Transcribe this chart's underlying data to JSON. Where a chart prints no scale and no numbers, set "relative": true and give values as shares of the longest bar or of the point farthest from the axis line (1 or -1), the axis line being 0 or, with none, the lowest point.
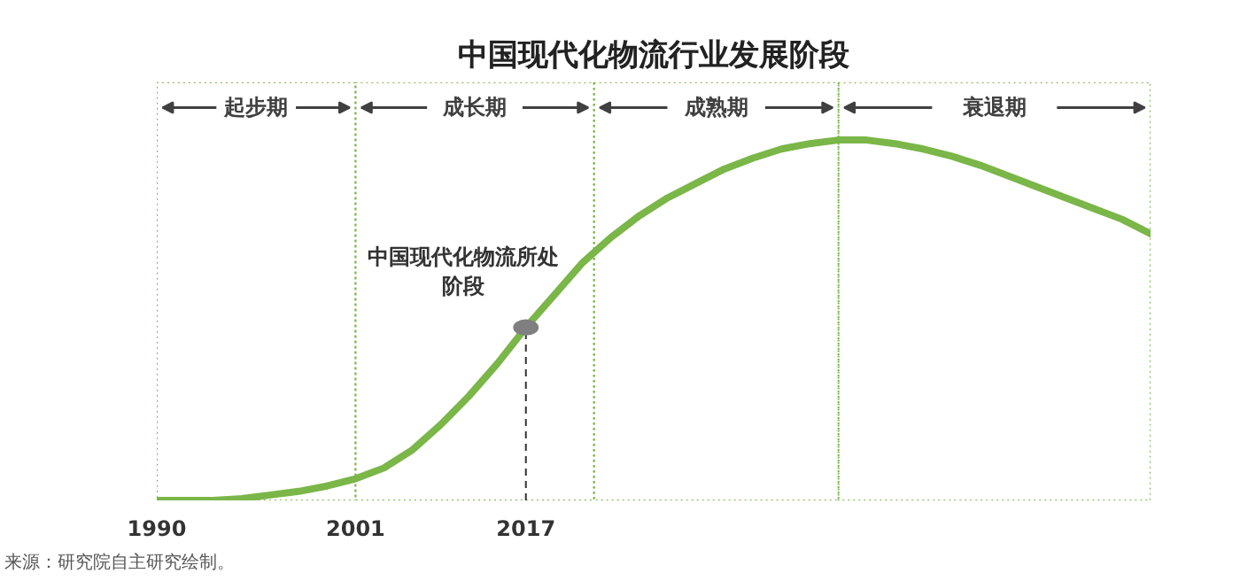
{
  "chart_data": {
    "type": "line",
    "title": "中国现代化物流行业发展阶段",
    "relative": true,
    "categories": [
      "1990",
      null,
      null,
      null,
      null,
      null,
      null,
      "2001",
      null,
      null,
      null,
      null,
      null,
      "2017",
      null,
      null,
      null,
      null,
      null,
      null,
      null,
      null,
      null,
      null,
      null,
      null,
      null,
      null,
      null,
      null,
      null,
      null,
      null,
      null,
      null,
      null
    ],
    "series": [
      {
        "color": "#7ab648",
        "values": [
          0,
          0,
          0,
          0.005,
          0.015,
          0.025,
          0.04,
          0.06,
          0.09,
          0.14,
          0.21,
          0.29,
          0.38,
          0.48,
          0.57,
          0.66,
          0.73,
          0.79,
          0.84,
          0.88,
          0.92,
          0.95,
          0.975,
          0.99,
          1.0,
          1.0,
          0.99,
          0.975,
          0.955,
          0.93,
          0.9,
          0.87,
          0.84,
          0.81,
          0.78,
          0.74
        ]
      }
    ],
    "ref_lines": [
      {
        "axis": "x",
        "value": "2017",
        "color": "#333333",
        "line_style": "dashed"
      }
    ],
    "annotations": [
      {
        "text": "中国现代化物流所处阶段",
        "x": "2017",
        "y": 0.48
      },
      "起步期",
      "成长期",
      "成熟期",
      "衰退期",
      "来源：研究院自主研究绘制。"
    ],
    "grid": false,
    "marker": "none",
    "line_style": "solid"
  }
}
